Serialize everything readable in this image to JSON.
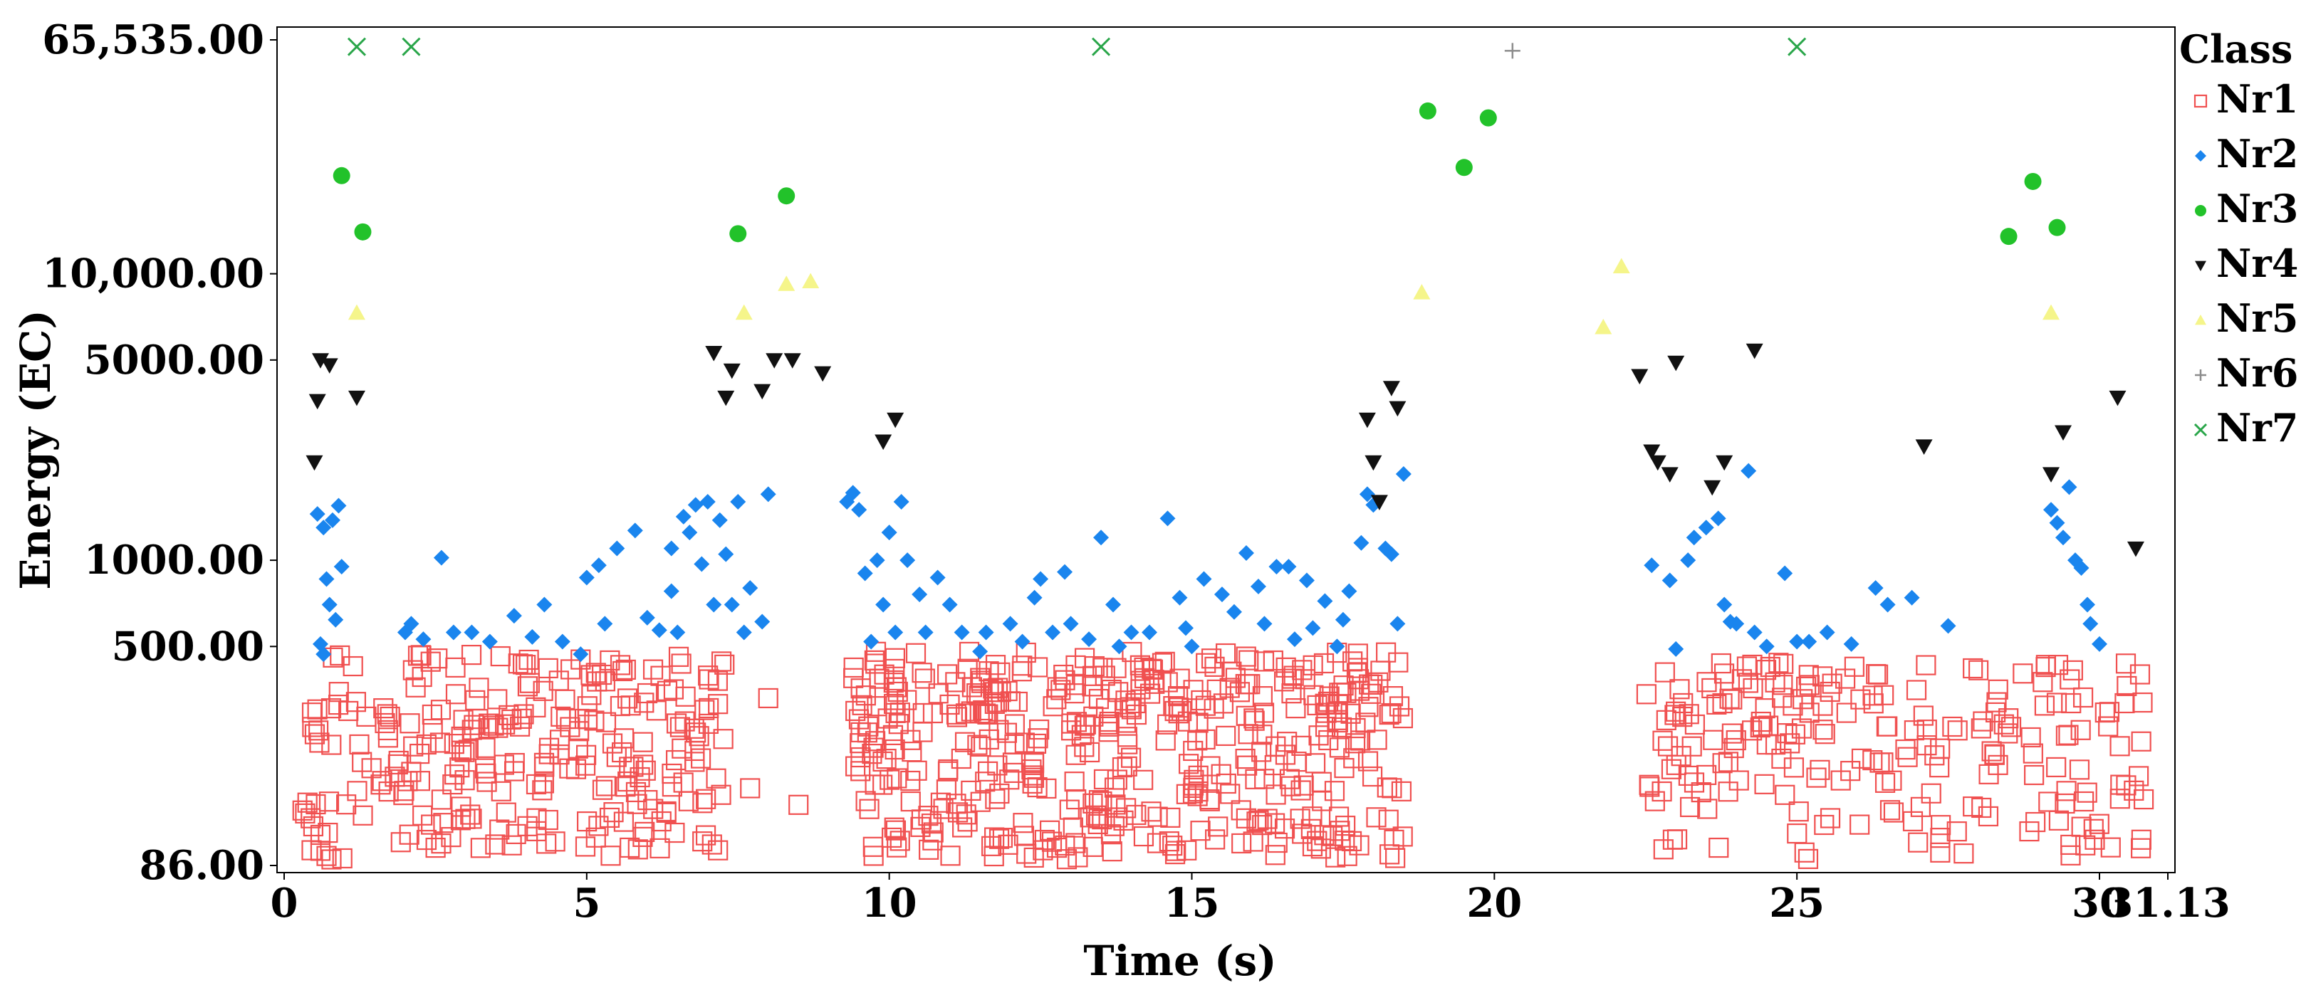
{
  "chart_data": {
    "type": "scatter",
    "title": "",
    "xlabel": "Time (s)",
    "ylabel": "Energy (EC)",
    "xscale": "linear",
    "yscale": "log",
    "xlim": [
      0,
      31.13
    ],
    "ylim": [
      86,
      65535
    ],
    "x_ticks": [
      0,
      5,
      10,
      15,
      20,
      25,
      30,
      31.13
    ],
    "x_tick_labels": [
      "0",
      "5",
      "10",
      "15",
      "20",
      "25",
      "30",
      "31.13"
    ],
    "y_ticks": [
      86,
      500,
      1000,
      5000,
      10000,
      65535
    ],
    "y_tick_labels": [
      "86.00",
      "500.00",
      "1000.00",
      "5000.00",
      "10,000.00",
      "65,535.00"
    ],
    "legend": {
      "title": "Class",
      "position": "right"
    },
    "series": [
      {
        "name": "Nr1",
        "marker": "open-square",
        "color": "#f05050",
        "clusters": [
          {
            "x_range": [
              0.3,
              7.3
            ],
            "y_range": [
              90,
              470
            ],
            "count": 260,
            "seed": 11
          },
          {
            "x_range": [
              9.4,
              18.5
            ],
            "y_range": [
              90,
              480
            ],
            "count": 440,
            "seed": 23
          },
          {
            "x_range": [
              22.4,
              30.9
            ],
            "y_range": [
              90,
              440
            ],
            "count": 210,
            "seed": 37
          }
        ],
        "points": [
          [
            7.7,
            160
          ],
          [
            8.0,
            330
          ],
          [
            8.5,
            140
          ],
          [
            0.6,
            110
          ]
        ]
      },
      {
        "name": "Nr2",
        "marker": "diamond",
        "color": "#1a85ee",
        "points": [
          [
            0.55,
            1450
          ],
          [
            0.65,
            1300
          ],
          [
            0.8,
            1380
          ],
          [
            0.9,
            1550
          ],
          [
            0.7,
            860
          ],
          [
            0.75,
            700
          ],
          [
            0.85,
            620
          ],
          [
            0.95,
            950
          ],
          [
            0.6,
            510
          ],
          [
            0.65,
            470
          ],
          [
            2.0,
            560
          ],
          [
            2.1,
            600
          ],
          [
            2.3,
            530
          ],
          [
            2.6,
            1020
          ],
          [
            2.8,
            560
          ],
          [
            3.1,
            560
          ],
          [
            3.4,
            520
          ],
          [
            3.8,
            640
          ],
          [
            4.1,
            540
          ],
          [
            4.3,
            700
          ],
          [
            4.6,
            520
          ],
          [
            4.9,
            470
          ],
          [
            5.0,
            870
          ],
          [
            5.2,
            960
          ],
          [
            5.3,
            600
          ],
          [
            5.5,
            1100
          ],
          [
            5.8,
            1270
          ],
          [
            6.0,
            630
          ],
          [
            6.2,
            570
          ],
          [
            6.4,
            780
          ],
          [
            6.4,
            1100
          ],
          [
            6.5,
            560
          ],
          [
            6.6,
            1420
          ],
          [
            6.7,
            1250
          ],
          [
            6.8,
            1560
          ],
          [
            6.9,
            970
          ],
          [
            7.0,
            1600
          ],
          [
            7.1,
            700
          ],
          [
            7.2,
            1380
          ],
          [
            7.3,
            1050
          ],
          [
            7.4,
            700
          ],
          [
            7.5,
            1600
          ],
          [
            7.6,
            560
          ],
          [
            7.7,
            800
          ],
          [
            7.9,
            610
          ],
          [
            8.0,
            1700
          ],
          [
            9.3,
            1600
          ],
          [
            9.4,
            1720
          ],
          [
            9.5,
            1500
          ],
          [
            9.6,
            900
          ],
          [
            9.7,
            520
          ],
          [
            9.8,
            1000
          ],
          [
            9.9,
            700
          ],
          [
            10.0,
            1250
          ],
          [
            10.1,
            560
          ],
          [
            10.2,
            1600
          ],
          [
            10.3,
            1000
          ],
          [
            10.5,
            760
          ],
          [
            10.6,
            560
          ],
          [
            10.8,
            870
          ],
          [
            11.0,
            700
          ],
          [
            11.2,
            560
          ],
          [
            11.5,
            480
          ],
          [
            11.6,
            560
          ],
          [
            12.0,
            600
          ],
          [
            12.2,
            520
          ],
          [
            12.4,
            740
          ],
          [
            12.5,
            860
          ],
          [
            12.7,
            560
          ],
          [
            12.9,
            910
          ],
          [
            13.0,
            600
          ],
          [
            13.3,
            530
          ],
          [
            13.5,
            1200
          ],
          [
            13.7,
            700
          ],
          [
            13.8,
            500
          ],
          [
            14.0,
            560
          ],
          [
            14.3,
            560
          ],
          [
            14.6,
            1400
          ],
          [
            14.8,
            740
          ],
          [
            14.9,
            580
          ],
          [
            15.0,
            500
          ],
          [
            15.2,
            860
          ],
          [
            15.5,
            760
          ],
          [
            15.7,
            660
          ],
          [
            15.9,
            1060
          ],
          [
            16.1,
            810
          ],
          [
            16.2,
            600
          ],
          [
            16.4,
            950
          ],
          [
            16.6,
            950
          ],
          [
            16.7,
            530
          ],
          [
            16.9,
            850
          ],
          [
            17.0,
            580
          ],
          [
            17.2,
            720
          ],
          [
            17.4,
            500
          ],
          [
            17.5,
            620
          ],
          [
            17.6,
            780
          ],
          [
            17.8,
            1150
          ],
          [
            17.9,
            1700
          ],
          [
            18.0,
            1560
          ],
          [
            18.2,
            1100
          ],
          [
            18.3,
            1050
          ],
          [
            18.5,
            2000
          ],
          [
            18.4,
            600
          ],
          [
            22.6,
            960
          ],
          [
            22.9,
            850
          ],
          [
            23.0,
            490
          ],
          [
            23.2,
            1000
          ],
          [
            23.3,
            1200
          ],
          [
            23.5,
            1300
          ],
          [
            23.7,
            1400
          ],
          [
            23.8,
            700
          ],
          [
            23.9,
            610
          ],
          [
            24.0,
            600
          ],
          [
            24.2,
            2050
          ],
          [
            24.3,
            560
          ],
          [
            24.5,
            500
          ],
          [
            24.8,
            900
          ],
          [
            25.0,
            520
          ],
          [
            25.2,
            520
          ],
          [
            25.5,
            560
          ],
          [
            25.9,
            510
          ],
          [
            26.3,
            800
          ],
          [
            26.5,
            700
          ],
          [
            26.9,
            740
          ],
          [
            27.5,
            590
          ],
          [
            29.3,
            1350
          ],
          [
            29.4,
            1200
          ],
          [
            29.5,
            1800
          ],
          [
            29.6,
            1000
          ],
          [
            29.7,
            940
          ],
          [
            29.8,
            700
          ],
          [
            29.85,
            600
          ],
          [
            30.0,
            510
          ],
          [
            29.2,
            1500
          ]
        ]
      },
      {
        "name": "Nr3",
        "marker": "circle",
        "color": "#22c22a",
        "points": [
          [
            0.95,
            22000
          ],
          [
            1.3,
            14000
          ],
          [
            7.5,
            13800
          ],
          [
            8.3,
            18700
          ],
          [
            18.9,
            37000
          ],
          [
            19.5,
            23500
          ],
          [
            19.9,
            35000
          ],
          [
            28.5,
            13500
          ],
          [
            28.9,
            21000
          ],
          [
            29.3,
            14500
          ]
        ]
      },
      {
        "name": "Nr4",
        "marker": "triangle-down",
        "color": "#111111",
        "points": [
          [
            0.5,
            2200
          ],
          [
            0.55,
            3600
          ],
          [
            0.6,
            5000
          ],
          [
            0.75,
            4800
          ],
          [
            1.2,
            3700
          ],
          [
            7.1,
            5300
          ],
          [
            7.3,
            3700
          ],
          [
            7.4,
            4600
          ],
          [
            7.9,
            3900
          ],
          [
            8.1,
            5000
          ],
          [
            8.4,
            5000
          ],
          [
            8.9,
            4500
          ],
          [
            9.9,
            2600
          ],
          [
            10.1,
            3100
          ],
          [
            17.9,
            3100
          ],
          [
            18.0,
            2200
          ],
          [
            18.1,
            1600
          ],
          [
            18.3,
            4000
          ],
          [
            18.4,
            3400
          ],
          [
            22.4,
            4400
          ],
          [
            22.6,
            2400
          ],
          [
            22.7,
            2200
          ],
          [
            22.9,
            2000
          ],
          [
            23.0,
            4900
          ],
          [
            23.6,
            1800
          ],
          [
            23.8,
            2200
          ],
          [
            24.3,
            5400
          ],
          [
            27.1,
            2500
          ],
          [
            29.2,
            2000
          ],
          [
            29.4,
            2800
          ],
          [
            30.3,
            3700
          ],
          [
            30.6,
            1100
          ]
        ]
      },
      {
        "name": "Nr5",
        "marker": "triangle-up",
        "color": "#f5f58a",
        "points": [
          [
            1.2,
            7300
          ],
          [
            7.6,
            7300
          ],
          [
            8.3,
            9200
          ],
          [
            8.7,
            9400
          ],
          [
            18.8,
            8600
          ],
          [
            21.8,
            6500
          ],
          [
            22.1,
            10600
          ],
          [
            29.2,
            7300
          ]
        ]
      },
      {
        "name": "Nr6",
        "marker": "plus",
        "color": "#8c8c8c",
        "points": [
          [
            20.3,
            60000
          ]
        ]
      },
      {
        "name": "Nr7",
        "marker": "x",
        "color": "#2aa64a",
        "points": [
          [
            1.2,
            62000
          ],
          [
            2.1,
            62000
          ],
          [
            13.5,
            62000
          ],
          [
            25.0,
            62000
          ]
        ]
      }
    ]
  }
}
